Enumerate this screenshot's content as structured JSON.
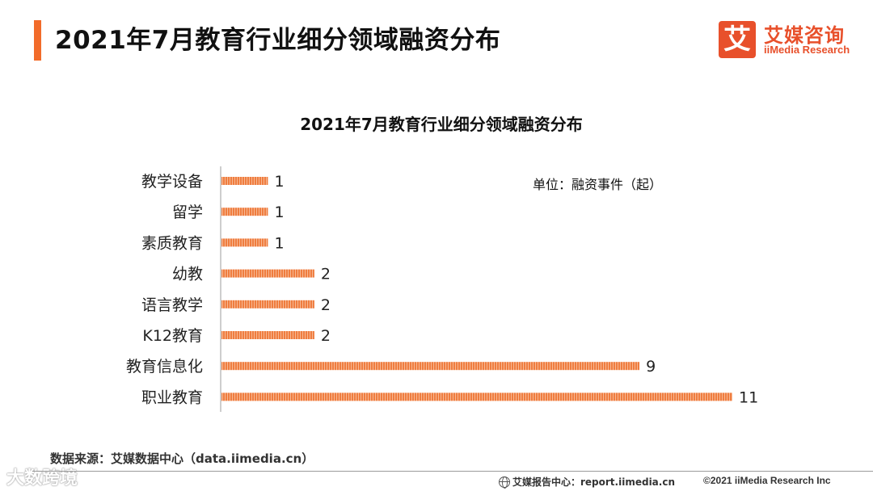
{
  "page": {
    "title": "2021年7月教育行业细分领域融资分布"
  },
  "logo": {
    "mark": "艾",
    "name_cn": "艾媒咨询",
    "name_en": "iiMedia Research"
  },
  "chart_data": {
    "type": "bar",
    "orientation": "horizontal",
    "title": "2021年7月教育行业细分领域融资分布",
    "unit": "单位：融资事件（起）",
    "categories": [
      "教学设备",
      "留学",
      "素质教育",
      "幼教",
      "语言教学",
      "K12教育",
      "教育信息化",
      "职业教育"
    ],
    "values": [
      1,
      1,
      1,
      2,
      2,
      2,
      9,
      11
    ],
    "xlim": [
      0,
      11
    ],
    "grid": false,
    "legend": "none",
    "bar_color": "#f0834a"
  },
  "footer": {
    "source": "数据来源：艾媒数据中心（data.iimedia.cn）",
    "report": "艾媒报告中心：report.iimedia.cn",
    "copyright": "©2021  iiMedia Research  Inc",
    "watermark": "大数跨境"
  },
  "colors": {
    "accent": "#f26b2a",
    "brand": "#e8502b",
    "bar": "#f0834a"
  }
}
